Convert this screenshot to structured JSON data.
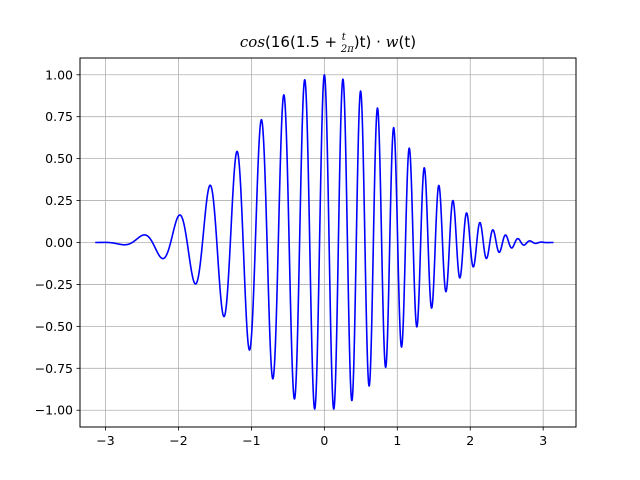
{
  "chart_data": {
    "type": "line",
    "title": {
      "prefix": "cos",
      "part1": "(16(1.5 + ",
      "frac_num": "t",
      "frac_den": "2π",
      "part2": ")t) · ",
      "w": "w",
      "part3": "(t)"
    },
    "xlabel": "",
    "ylabel": "",
    "xlim": [
      -3.35,
      3.45
    ],
    "ylim": [
      -1.1,
      1.1
    ],
    "xticks": [
      -3,
      -2,
      -1,
      0,
      1,
      2,
      3
    ],
    "xtick_labels": [
      "−3",
      "−2",
      "−1",
      "0",
      "1",
      "2",
      "3"
    ],
    "yticks": [
      -1.0,
      -0.75,
      -0.5,
      -0.25,
      0.0,
      0.25,
      0.5,
      0.75,
      1.0
    ],
    "ytick_labels": [
      "−1.00",
      "−0.75",
      "−0.50",
      "−0.25",
      "0.00",
      "0.25",
      "0.50",
      "0.75",
      "1.00"
    ],
    "grid": true,
    "series": [
      {
        "color": "#0000ff",
        "function": "cos(16*(1.5 + t/(2*pi))*t) * w(t)",
        "window": "blackman",
        "t_range": [
          -3.14159,
          3.14159
        ],
        "samples": 1500
      }
    ]
  }
}
